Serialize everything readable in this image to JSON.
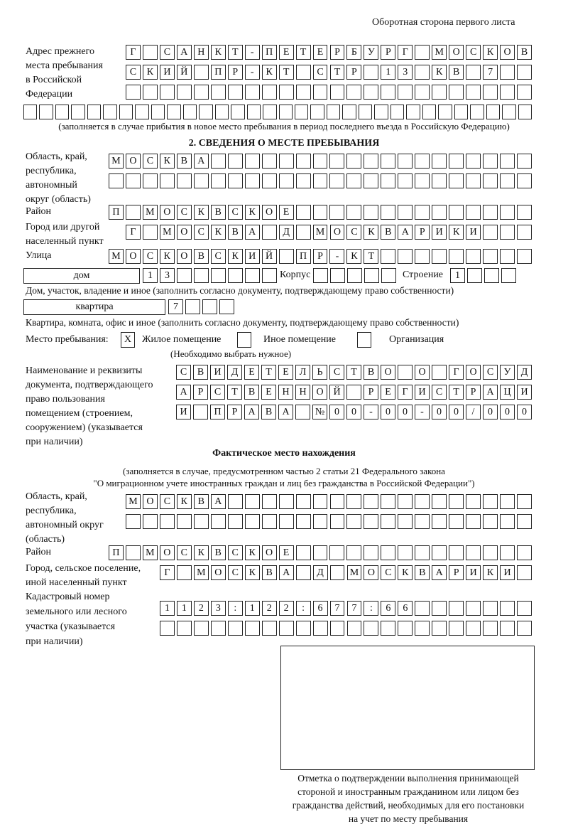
{
  "header": "Оборотная сторона первого листа",
  "prev_address": {
    "label_lines": [
      "Адрес прежнего",
      "места пребывания",
      "в Российской",
      "Федерации"
    ],
    "rows": [
      [
        "Г",
        "",
        "С",
        "А",
        "Н",
        "К",
        "Т",
        "-",
        "П",
        "Е",
        "Т",
        "Е",
        "Р",
        "Б",
        "У",
        "Р",
        "Г",
        "",
        "М",
        "О",
        "С",
        "К",
        "О",
        "В"
      ],
      [
        "С",
        "К",
        "И",
        "Й",
        "",
        "П",
        "Р",
        "-",
        "К",
        "Т",
        "",
        "С",
        "Т",
        "Р",
        "",
        "1",
        "3",
        "",
        "К",
        "В",
        "",
        "7",
        "",
        ""
      ],
      [
        "",
        "",
        "",
        "",
        "",
        "",
        "",
        "",
        "",
        "",
        "",
        "",
        "",
        "",
        "",
        "",
        "",
        "",
        "",
        "",
        "",
        "",
        "",
        ""
      ],
      [
        "",
        "",
        "",
        "",
        "",
        "",
        "",
        "",
        "",
        "",
        "",
        "",
        "",
        "",
        "",
        "",
        "",
        "",
        "",
        "",
        "",
        "",
        "",
        "",
        "",
        "",
        "",
        "",
        "",
        "",
        "",
        ""
      ]
    ],
    "note": "(заполняется в случае прибытия в новое место пребывания в период последнего въезда в Российскую Федерацию)"
  },
  "section2": {
    "title": "2. СВЕДЕНИЯ О МЕСТЕ ПРЕБЫВАНИЯ",
    "region_label_lines": [
      "Область, край,",
      "республика,",
      "автономный",
      "округ (область)"
    ],
    "region_rows": [
      [
        "М",
        "О",
        "С",
        "К",
        "В",
        "А",
        "",
        "",
        "",
        "",
        "",
        "",
        "",
        "",
        "",
        "",
        "",
        "",
        "",
        "",
        "",
        "",
        "",
        "",
        ""
      ],
      [
        "",
        "",
        "",
        "",
        "",
        "",
        "",
        "",
        "",
        "",
        "",
        "",
        "",
        "",
        "",
        "",
        "",
        "",
        "",
        "",
        "",
        "",
        "",
        "",
        ""
      ]
    ],
    "district_label": "Район",
    "district_row": [
      "П",
      "",
      "М",
      "О",
      "С",
      "К",
      "В",
      "С",
      "К",
      "О",
      "Е",
      "",
      "",
      "",
      "",
      "",
      "",
      "",
      "",
      "",
      "",
      "",
      "",
      "",
      ""
    ],
    "city_label_lines": [
      "Город или другой",
      "населенный пункт"
    ],
    "city_row": [
      "Г",
      "",
      "М",
      "О",
      "С",
      "К",
      "В",
      "А",
      "",
      "Д",
      "",
      "М",
      "О",
      "С",
      "К",
      "В",
      "А",
      "Р",
      "И",
      "К",
      "И",
      "",
      "",
      ""
    ],
    "street_label": "Улица",
    "street_row": [
      "М",
      "О",
      "С",
      "К",
      "О",
      "В",
      "С",
      "К",
      "И",
      "Й",
      "",
      "П",
      "Р",
      "-",
      "К",
      "Т",
      "",
      "",
      "",
      "",
      "",
      "",
      "",
      "",
      ""
    ],
    "house_type": "дом",
    "house_row": [
      "1",
      "3",
      "",
      "",
      "",
      "",
      "",
      ""
    ],
    "korpus_label": "Корпус",
    "korpus_row": [
      "",
      "",
      "",
      "",
      ""
    ],
    "building_label": "Строение",
    "building_row": [
      "1",
      "",
      "",
      ""
    ],
    "house_caption": "Дом, участок, владение и иное (заполнить согласно документу, подтверждающему право собственности)",
    "flat_type": "квартира",
    "flat_row": [
      "7",
      "",
      "",
      ""
    ],
    "flat_caption": "Квартира, комната, офис и иное (заполнить согласно документу, подтверждающему право собственности)",
    "stay_label": "Место пребывания:",
    "stay_options": [
      {
        "label": "Жилое помещение",
        "mark": "X"
      },
      {
        "label": "Иное помещение",
        "mark": ""
      },
      {
        "label": "Организация",
        "mark": ""
      }
    ],
    "stay_hint": "(Необходимо выбрать нужное)",
    "doc_label_lines": [
      "Наименование и реквизиты",
      "документа, подтверждающего",
      "право пользования",
      "помещением (строением,",
      "сооружением) (указывается",
      "при наличии)"
    ],
    "doc_rows": [
      [
        "С",
        "В",
        "И",
        "Д",
        "Е",
        "Т",
        "Е",
        "Л",
        "Ь",
        "С",
        "Т",
        "В",
        "О",
        "",
        "О",
        "",
        "Г",
        "О",
        "С",
        "У",
        "Д"
      ],
      [
        "А",
        "Р",
        "С",
        "Т",
        "В",
        "Е",
        "Н",
        "Н",
        "О",
        "Й",
        "",
        "Р",
        "Е",
        "Г",
        "И",
        "С",
        "Т",
        "Р",
        "А",
        "Ц",
        "И"
      ],
      [
        "И",
        "",
        "П",
        "Р",
        "А",
        "В",
        "А",
        "",
        "№",
        "0",
        "0",
        "-",
        "0",
        "0",
        "-",
        "0",
        "0",
        "/",
        "0",
        "0",
        "0"
      ]
    ]
  },
  "actual": {
    "title": "Фактическое место нахождения",
    "note_lines": [
      "(заполняется в случае, предусмотренном частью 2 статьи 21 Федерального закона",
      "\"О миграционном учете иностранных граждан и лиц без гражданства в Российской Федерации\")"
    ],
    "region_label_lines": [
      "Область, край,",
      "республика,",
      "автономный округ",
      "(область)"
    ],
    "region_rows": [
      [
        "М",
        "О",
        "С",
        "К",
        "В",
        "А",
        "",
        "",
        "",
        "",
        "",
        "",
        "",
        "",
        "",
        "",
        "",
        "",
        "",
        "",
        "",
        "",
        "",
        ""
      ],
      [
        "",
        "",
        "",
        "",
        "",
        "",
        "",
        "",
        "",
        "",
        "",
        "",
        "",
        "",
        "",
        "",
        "",
        "",
        "",
        "",
        "",
        "",
        "",
        ""
      ]
    ],
    "district_label": "Район",
    "district_row": [
      "П",
      "",
      "М",
      "О",
      "С",
      "К",
      "В",
      "С",
      "К",
      "О",
      "Е",
      "",
      "",
      "",
      "",
      "",
      "",
      "",
      "",
      "",
      "",
      "",
      "",
      "",
      ""
    ],
    "city_label_lines": [
      "Город, сельское поселение,",
      "иной населенный пункт"
    ],
    "city_row": [
      "Г",
      "",
      "М",
      "О",
      "С",
      "К",
      "В",
      "А",
      "",
      "Д",
      "",
      "М",
      "О",
      "С",
      "К",
      "В",
      "А",
      "Р",
      "И",
      "К",
      "И",
      ""
    ],
    "cadastre_label_lines": [
      "Кадастровый номер",
      "земельного или лесного",
      "участка (указывается",
      "при наличии)"
    ],
    "cadastre_rows": [
      [
        "1",
        "1",
        "2",
        "3",
        ":",
        "1",
        "2",
        "2",
        ":",
        "6",
        "7",
        "7",
        ":",
        "6",
        "6",
        "",
        "",
        "",
        "",
        "",
        "",
        ""
      ],
      [
        "",
        "",
        "",
        "",
        "",
        "",
        "",
        "",
        "",
        "",
        "",
        "",
        "",
        "",
        "",
        "",
        "",
        "",
        "",
        "",
        "",
        ""
      ]
    ]
  },
  "stamp_caption_lines": [
    "Отметка о подтверждении выполнения принимающей",
    "стороной и иностранным гражданином или лицом без",
    "гражданства действий, необходимых для его постановки",
    "на учет по месту пребывания"
  ]
}
